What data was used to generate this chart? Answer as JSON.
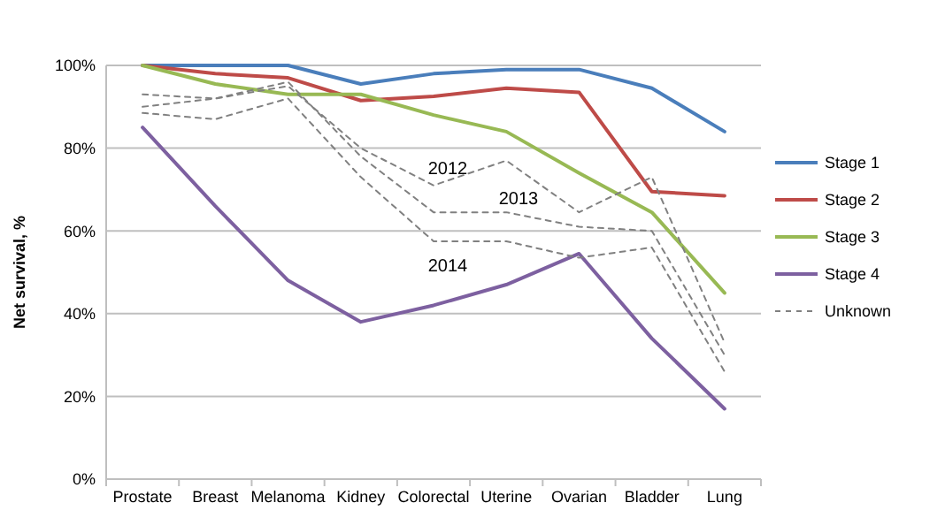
{
  "chart_data": {
    "type": "line",
    "ylabel": "Net survival, %",
    "categories": [
      "Prostate",
      "Breast",
      "Melanoma",
      "Kidney",
      "Colorectal",
      "Uterine",
      "Ovarian",
      "Bladder",
      "Lung"
    ],
    "series": [
      {
        "name": "Stage 1",
        "color": "#4a7ebb",
        "values": [
          100,
          100,
          100,
          95.5,
          98,
          99,
          99,
          94.5,
          84
        ]
      },
      {
        "name": "Stage 2",
        "color": "#be4b48",
        "values": [
          100,
          98,
          97,
          91.5,
          92.5,
          94.5,
          93.5,
          69.5,
          68.5
        ]
      },
      {
        "name": "Stage 3",
        "color": "#98b954",
        "values": [
          100,
          95.5,
          93,
          93,
          88,
          84,
          74,
          64.5,
          45
        ]
      },
      {
        "name": "Stage 4",
        "color": "#7d60a0",
        "values": [
          85,
          66,
          48,
          38,
          42,
          47,
          54.5,
          34,
          17
        ]
      },
      {
        "name": "Unknown",
        "color": "#808080",
        "line_style": "dashed",
        "values": [
          93,
          92,
          95,
          80,
          71,
          77,
          64.5,
          73,
          33
        ]
      },
      {
        "color": "#808080",
        "line_style": "dashed",
        "values": [
          90,
          92,
          96,
          78,
          64.5,
          64.5,
          61,
          60,
          30
        ]
      },
      {
        "color": "#808080",
        "line_style": "dashed",
        "values": [
          88.5,
          87,
          92,
          73,
          57.5,
          57.5,
          53.5,
          56,
          26
        ]
      }
    ],
    "annotations": [
      "2012",
      "2013",
      "2014"
    ],
    "ylim": [
      0,
      100
    ],
    "yticks": [
      {
        "value": 0,
        "label": "0%"
      },
      {
        "value": 20,
        "label": "20%"
      },
      {
        "value": 40,
        "label": "40%"
      },
      {
        "value": 60,
        "label": "60%"
      },
      {
        "value": 80,
        "label": "80%"
      },
      {
        "value": 100,
        "label": "100%"
      }
    ],
    "grid": "y",
    "legend": "right",
    "marker": "none",
    "line_style": "solid"
  }
}
